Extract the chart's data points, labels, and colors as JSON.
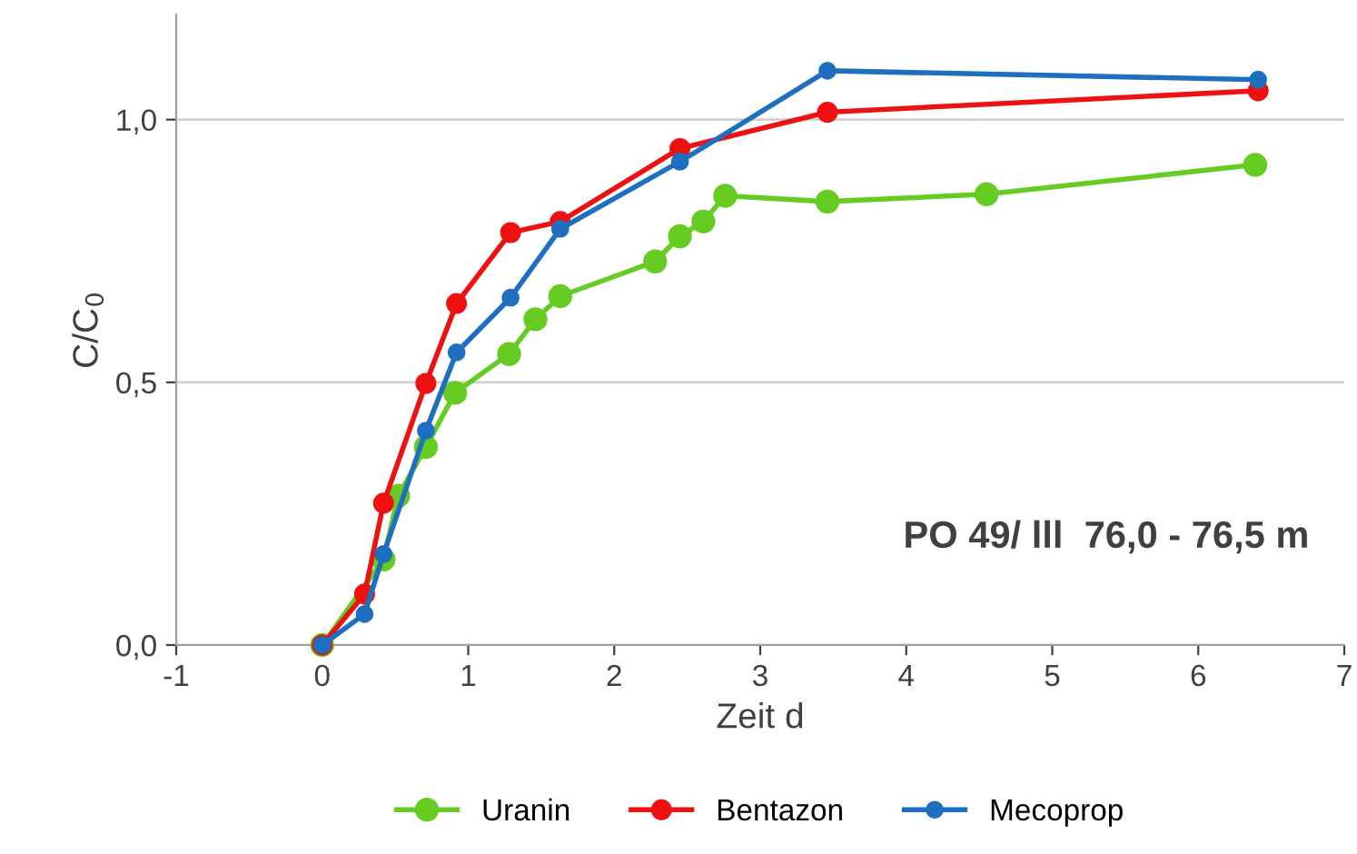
{
  "chart_data": {
    "type": "line",
    "xlabel": "Zeit d",
    "ylabel": "C/C$_{0}$",
    "xlim": [
      -1,
      7
    ],
    "ylim": [
      0,
      1.2
    ],
    "xticks": [
      -1,
      0,
      1,
      2,
      3,
      4,
      5,
      6,
      7
    ],
    "yticks": [
      {
        "value": 0,
        "label": "0,0"
      },
      {
        "value": 0.5,
        "label": "0,5"
      },
      {
        "value": 1.0,
        "label": "1,0"
      }
    ],
    "grid": "y",
    "legend": "bottom",
    "marker": "circle",
    "line_style": "solid",
    "annotations": [
      "PO 49/ lll  76,0 - 76,5 m"
    ],
    "series": [
      {
        "name": "Uranin",
        "color": "#66cc22",
        "x": [
          0,
          0.42,
          0.52,
          0.71,
          0.91,
          1.28,
          1.46,
          1.63,
          2.28,
          2.45,
          2.61,
          2.76,
          3.46,
          4.55,
          6.39
        ],
        "values": [
          0,
          0.163,
          0.284,
          0.377,
          0.48,
          0.554,
          0.62,
          0.664,
          0.73,
          0.778,
          0.806,
          0.855,
          0.844,
          0.858,
          0.914
        ]
      },
      {
        "name": "Bentazon",
        "color": "#ee1111",
        "x": [
          0,
          0.29,
          0.42,
          0.71,
          0.92,
          1.29,
          1.63,
          2.45,
          3.46,
          6.41
        ],
        "values": [
          0,
          0.097,
          0.27,
          0.498,
          0.65,
          0.785,
          0.806,
          0.945,
          1.014,
          1.055
        ]
      },
      {
        "name": "Mecoprop",
        "color": "#1f6fc0",
        "x": [
          0,
          0.29,
          0.42,
          0.71,
          0.92,
          1.29,
          1.63,
          2.45,
          3.46,
          6.41
        ],
        "values": [
          0,
          0.059,
          0.173,
          0.408,
          0.557,
          0.661,
          0.792,
          0.92,
          1.093,
          1.076
        ]
      }
    ]
  }
}
